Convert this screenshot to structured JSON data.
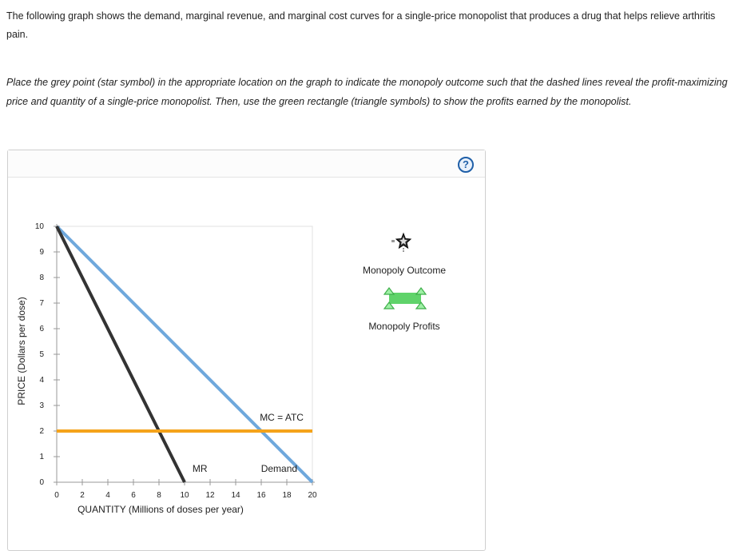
{
  "intro": {
    "text": "The following graph shows the demand, marginal revenue, and marginal cost curves for a single-price monopolist that produces a drug that helps relieve arthritis pain."
  },
  "instructions": {
    "text": "Place the grey point (star symbol) in the appropriate location on the graph to indicate the monopoly outcome such that the dashed lines reveal the profit-maximizing price and quantity of a single-price monopolist. Then, use the green rectangle (triangle symbols) to show the profits earned by the monopolist."
  },
  "help": {
    "label": "?"
  },
  "palette": {
    "monopoly_outcome_label": "Monopoly Outcome",
    "monopoly_profits_label": "Monopoly Profits",
    "outcome_icon": "star-icon",
    "profits_icon": "rectangle-triangles-icon"
  },
  "chart_data": {
    "type": "line",
    "xlabel": "QUANTITY (Millions of doses per year)",
    "ylabel": "PRICE (Dollars per dose)",
    "xlim": [
      0,
      20
    ],
    "ylim": [
      0,
      10
    ],
    "xticks": [
      0,
      2,
      4,
      6,
      8,
      10,
      12,
      14,
      16,
      18,
      20
    ],
    "yticks": [
      0,
      1,
      2,
      3,
      4,
      5,
      6,
      7,
      8,
      9,
      10
    ],
    "series": [
      {
        "name": "Demand",
        "color": "#6fa8dc",
        "points": [
          [
            0,
            10
          ],
          [
            20,
            0
          ]
        ]
      },
      {
        "name": "MR",
        "color": "#333333",
        "points": [
          [
            0,
            10
          ],
          [
            10,
            0
          ]
        ]
      },
      {
        "name": "MC = ATC",
        "color": "#f5a31a",
        "points": [
          [
            0,
            2
          ],
          [
            20,
            2
          ]
        ]
      }
    ],
    "grid": false
  }
}
